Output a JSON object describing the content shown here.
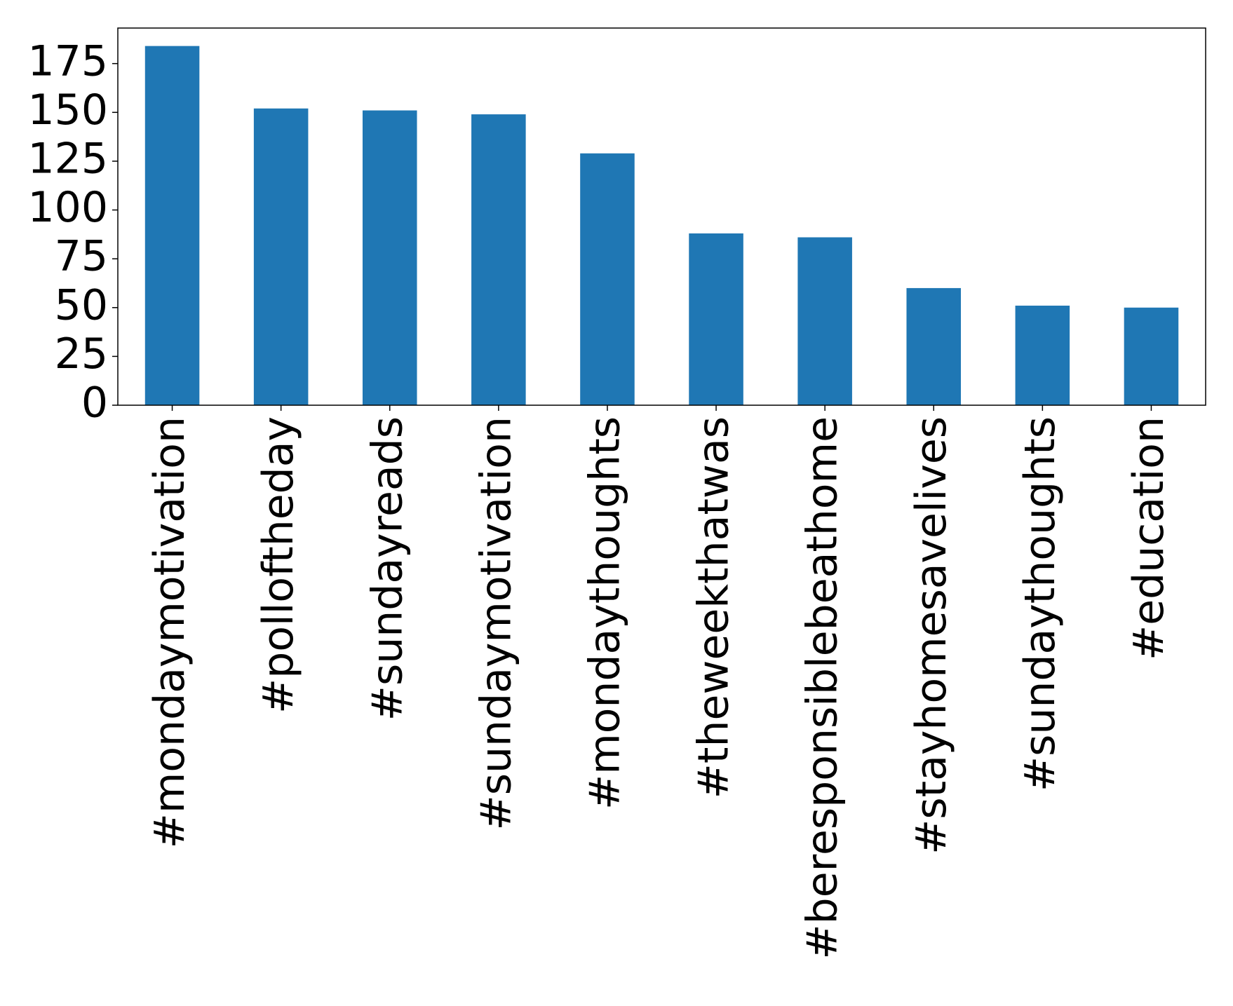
{
  "chart_data": {
    "type": "bar",
    "categories": [
      "#mondaymotivation",
      "#polloftheday",
      "#sundayreads",
      "#sundaymotivation",
      "#mondaythoughts",
      "#theweekthatwas",
      "#beresponsiblebeathome",
      "#stayhomesavelives",
      "#sundaythoughts",
      "#education"
    ],
    "values": [
      184,
      152,
      151,
      149,
      129,
      88,
      86,
      60,
      51,
      50
    ],
    "color": "#1f77b4",
    "ylim": [
      0,
      193.2
    ],
    "yticks": [
      0,
      25,
      50,
      75,
      100,
      125,
      150,
      175
    ]
  }
}
